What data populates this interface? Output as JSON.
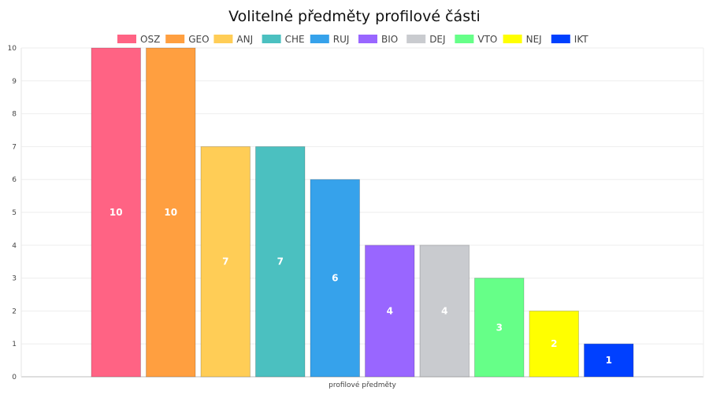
{
  "chart_data": {
    "type": "bar",
    "title": "Volitelné předměty profilové části",
    "xlabel": "",
    "ylabel": "",
    "categories": [
      "profilové předměty"
    ],
    "ylim": [
      0,
      10
    ],
    "yticks": [
      0,
      1,
      2,
      3,
      4,
      5,
      6,
      7,
      8,
      9,
      10
    ],
    "grid": true,
    "legend_position": "top",
    "series": [
      {
        "name": "OSZ",
        "values": [
          10
        ],
        "color": "#ff6384"
      },
      {
        "name": "GEO",
        "values": [
          10
        ],
        "color": "#ff9f40"
      },
      {
        "name": "ANJ",
        "values": [
          7
        ],
        "color": "#ffcd56"
      },
      {
        "name": "CHE",
        "values": [
          7
        ],
        "color": "#4bc0c0"
      },
      {
        "name": "RUJ",
        "values": [
          6
        ],
        "color": "#36a2eb"
      },
      {
        "name": "BIO",
        "values": [
          4
        ],
        "color": "#9966ff"
      },
      {
        "name": "DEJ",
        "values": [
          4
        ],
        "color": "#c9cbcf"
      },
      {
        "name": "VTO",
        "values": [
          3
        ],
        "color": "#66ff88"
      },
      {
        "name": "NEJ",
        "values": [
          2
        ],
        "color": "#ffff00"
      },
      {
        "name": "IKT",
        "values": [
          1
        ],
        "color": "#0040ff"
      }
    ]
  }
}
